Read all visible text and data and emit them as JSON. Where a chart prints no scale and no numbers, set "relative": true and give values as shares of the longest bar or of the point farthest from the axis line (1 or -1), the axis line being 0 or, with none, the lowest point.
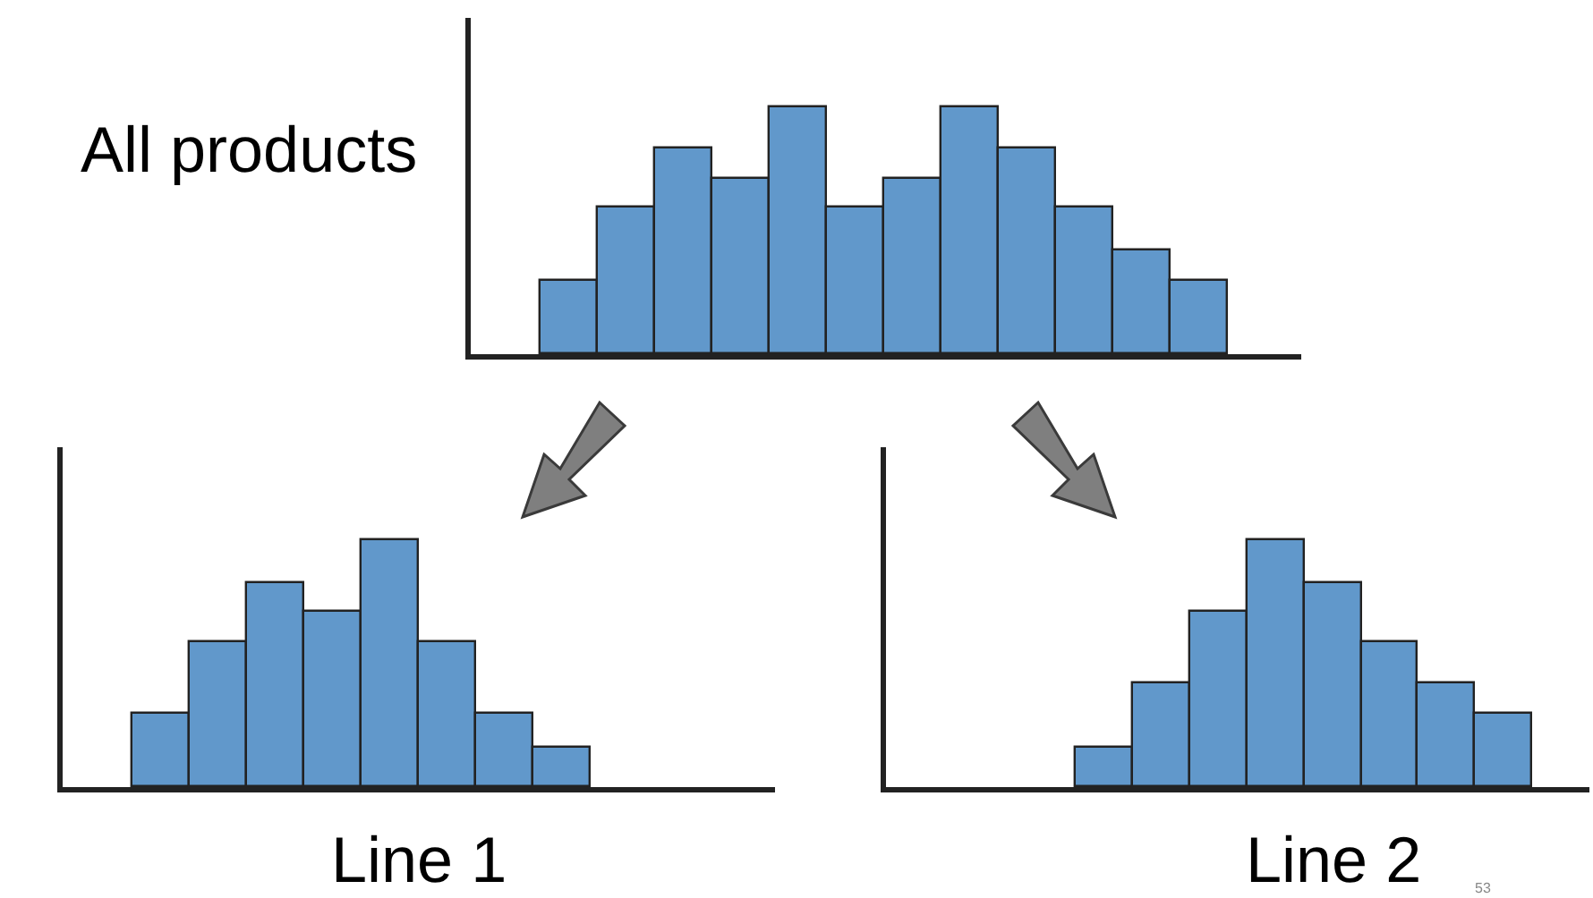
{
  "chart_data": [
    {
      "type": "bar",
      "title": "All products",
      "relative": true,
      "categories": [
        null,
        null,
        null,
        null,
        null,
        null,
        null,
        null,
        null,
        null,
        null,
        null
      ],
      "color": "#6198cb",
      "values": [
        0.3,
        0.59,
        0.83,
        0.71,
        1,
        0.59,
        0.71,
        1,
        0.83,
        0.59,
        0.42,
        0.3
      ]
    },
    {
      "type": "bar",
      "xlabel": "Line 1",
      "relative": true,
      "categories": [
        null,
        null,
        null,
        null,
        null,
        null,
        null,
        null
      ],
      "color": "#6198cb",
      "values": [
        0.3,
        0.59,
        0.83,
        0.71,
        1,
        0.59,
        0.3,
        0.16
      ]
    },
    {
      "type": "bar",
      "xlabel": "Line 2",
      "relative": true,
      "categories": [
        null,
        null,
        null,
        null,
        null,
        null,
        null,
        null
      ],
      "color": "#6198cb",
      "values": [
        0.16,
        0.42,
        0.71,
        1,
        0.83,
        0.59,
        0.42,
        0.3
      ],
      "annotations": [
        "53"
      ]
    }
  ]
}
